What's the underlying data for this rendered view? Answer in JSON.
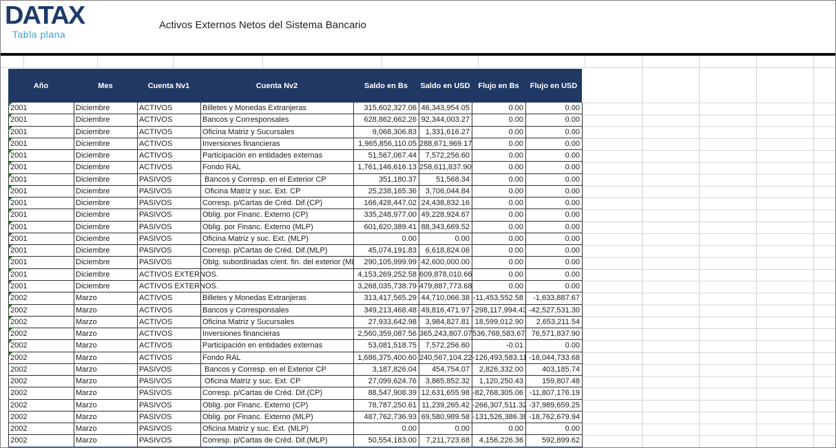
{
  "branding": {
    "logo": "DATAX",
    "tagline": "Tabla plana"
  },
  "title": "Activos Externos Netos del Sistema Bancario",
  "colors": {
    "header_bg": "#1f3864",
    "logo_navy": "#1c3a6b",
    "tagline_blue": "#3aa0dc",
    "error_marker_green": "#1e8a1e",
    "grid_gray": "#d4d4d4"
  },
  "table": {
    "columns": [
      {
        "key": "ano",
        "label": "Año"
      },
      {
        "key": "mes",
        "label": "Mes"
      },
      {
        "key": "c1",
        "label": "Cuenta Nv1"
      },
      {
        "key": "c2",
        "label": "Cuenta Nv2"
      },
      {
        "key": "saldo_bs",
        "label": "Saldo en Bs"
      },
      {
        "key": "saldo_usd",
        "label": "Saldo en USD"
      },
      {
        "key": "flujo_bs",
        "label": "Flujo en Bs"
      },
      {
        "key": "flujo_usd",
        "label": "Flujo en USD"
      }
    ],
    "rows": [
      {
        "ano": "2001",
        "mes": "Diciembre",
        "c1": "ACTIVOS",
        "c2": "Billetes y Monedas Extranjeras",
        "saldo_bs": "315,602,327.06",
        "saldo_usd": "46,343,954.05",
        "flujo_bs": "0.00",
        "flujo_usd": "0.00",
        "marker": true
      },
      {
        "ano": "2001",
        "mes": "Diciembre",
        "c1": "ACTIVOS",
        "c2": "Bancos y Corresponsales",
        "saldo_bs": "628,862,662.26",
        "saldo_usd": "92,344,003.27",
        "flujo_bs": "0.00",
        "flujo_usd": "0.00",
        "marker": true
      },
      {
        "ano": "2001",
        "mes": "Diciembre",
        "c1": "ACTIVOS",
        "c2": "Oficina Matriz y Sucursales",
        "saldo_bs": "9,068,306.83",
        "saldo_usd": "1,331,616.27",
        "flujo_bs": "0.00",
        "flujo_usd": "0.00",
        "marker": true
      },
      {
        "ano": "2001",
        "mes": "Diciembre",
        "c1": "ACTIVOS",
        "c2": "Inversiones financieras",
        "saldo_bs": "1,965,856,110.05",
        "saldo_usd": "288,671,969.17",
        "flujo_bs": "0.00",
        "flujo_usd": "0.00",
        "marker": true
      },
      {
        "ano": "2001",
        "mes": "Diciembre",
        "c1": "ACTIVOS",
        "c2": "Participación en entidades externas",
        "saldo_bs": "51,567,067.44",
        "saldo_usd": "7,572,256.60",
        "flujo_bs": "0.00",
        "flujo_usd": "0.00",
        "marker": true
      },
      {
        "ano": "2001",
        "mes": "Diciembre",
        "c1": "ACTIVOS",
        "c2": "Fondo RAL",
        "saldo_bs": "1,761,146,616.13",
        "saldo_usd": "258,611,837.90",
        "flujo_bs": "0.00",
        "flujo_usd": "0.00",
        "marker": true
      },
      {
        "ano": "2001",
        "mes": "Diciembre",
        "c1": "PASIVOS",
        "c2": " Bancos y Corresp. en el Exterior CP",
        "saldo_bs": "351,180.37",
        "saldo_usd": "51,568.34",
        "flujo_bs": "0.00",
        "flujo_usd": "0.00",
        "marker": true
      },
      {
        "ano": "2001",
        "mes": "Diciembre",
        "c1": "PASIVOS",
        "c2": " Oficina Matriz y suc. Ext. CP",
        "saldo_bs": "25,238,165.36",
        "saldo_usd": "3,706,044.84",
        "flujo_bs": "0.00",
        "flujo_usd": "0.00",
        "marker": true
      },
      {
        "ano": "2001",
        "mes": "Diciembre",
        "c1": "PASIVOS",
        "c2": "Corresp. p/Cartas de Créd. Dif.(CP)",
        "saldo_bs": "166,428,447.02",
        "saldo_usd": "24,438,832.16",
        "flujo_bs": "0.00",
        "flujo_usd": "0.00",
        "marker": true
      },
      {
        "ano": "2001",
        "mes": "Diciembre",
        "c1": "PASIVOS",
        "c2": "Oblig. por Financ. Externo (CP)",
        "saldo_bs": "335,248,977.00",
        "saldo_usd": "49,228,924.67",
        "flujo_bs": "0.00",
        "flujo_usd": "0.00",
        "marker": true
      },
      {
        "ano": "2001",
        "mes": "Diciembre",
        "c1": "PASIVOS",
        "c2": "Oblig. por Financ. Externo (MLP)",
        "saldo_bs": "601,620,389.41",
        "saldo_usd": "88,343,669.52",
        "flujo_bs": "0.00",
        "flujo_usd": "0.00",
        "marker": true
      },
      {
        "ano": "2001",
        "mes": "Diciembre",
        "c1": "PASIVOS",
        "c2": "Oficina Matriz y suc. Ext. (MLP)",
        "saldo_bs": "0.00",
        "saldo_usd": "0.00",
        "flujo_bs": "0.00",
        "flujo_usd": "0.00",
        "marker": true
      },
      {
        "ano": "2001",
        "mes": "Diciembre",
        "c1": "PASIVOS",
        "c2": "Corresp. p/Cartas de Créd. Dif.(MLP)",
        "saldo_bs": "45,074,191.83",
        "saldo_usd": "6,618,824.06",
        "flujo_bs": "0.00",
        "flujo_usd": "0.00",
        "marker": true
      },
      {
        "ano": "2001",
        "mes": "Diciembre",
        "c1": "PASIVOS",
        "c2": "Oblg. subordinadas c/ent. fin. del exterior (MLP)",
        "saldo_bs": "290,105,999.99",
        "saldo_usd": "42,600,000.00",
        "flujo_bs": "0.00",
        "flujo_usd": "0.00",
        "marker": true
      },
      {
        "ano": "2001",
        "mes": "Diciembre",
        "c1": "ACTIVOS EXTERNOS.",
        "c2": "",
        "saldo_bs": "4,153,269,252.58",
        "saldo_usd": "609,878,010.66",
        "flujo_bs": "0.00",
        "flujo_usd": "0.00",
        "marker": true
      },
      {
        "ano": "2001",
        "mes": "Diciembre",
        "c1": "ACTIVOS EXTERNOS.",
        "c2": "",
        "saldo_bs": "3,268,035,738.79",
        "saldo_usd": "479,887,773.68",
        "flujo_bs": "0.00",
        "flujo_usd": "0.00",
        "marker": true
      },
      {
        "ano": "2002",
        "mes": "Marzo",
        "c1": "ACTIVOS",
        "c2": "Billetes y Monedas Extranjeras",
        "saldo_bs": "313,417,565.29",
        "saldo_usd": "44,710,066.38",
        "flujo_bs": "-11,453,552.58",
        "flujo_usd": "-1,633,887.67",
        "marker": true
      },
      {
        "ano": "2002",
        "mes": "Marzo",
        "c1": "ACTIVOS",
        "c2": "Bancos y Corresponsales",
        "saldo_bs": "349,213,468.48",
        "saldo_usd": "49,816,471.97",
        "flujo_bs": "-298,117,994.43",
        "flujo_usd": "-42,527,531.30",
        "marker": true
      },
      {
        "ano": "2002",
        "mes": "Marzo",
        "c1": "ACTIVOS",
        "c2": "Oficina Matriz y Sucursales",
        "saldo_bs": "27,933,642.98",
        "saldo_usd": "3,984,827.81",
        "flujo_bs": "18,599,012.90",
        "flujo_usd": "2,653,211.54",
        "marker": true
      },
      {
        "ano": "2002",
        "mes": "Marzo",
        "c1": "ACTIVOS",
        "c2": "Inversiones financieras",
        "saldo_bs": "2,560,359,087.56",
        "saldo_usd": "365,243,807.07",
        "flujo_bs": "536,768,583.67",
        "flujo_usd": "76,571,837.90",
        "marker": true
      },
      {
        "ano": "2002",
        "mes": "Marzo",
        "c1": "ACTIVOS",
        "c2": "Participación en entidades externas",
        "saldo_bs": "53,081,518.75",
        "saldo_usd": "7,572,256.60",
        "flujo_bs": "-0.01",
        "flujo_usd": "0.00",
        "marker": true
      },
      {
        "ano": "2002",
        "mes": "Marzo",
        "c1": "ACTIVOS",
        "c2": "Fondo RAL",
        "saldo_bs": "1,686,375,400.60",
        "saldo_usd": "240,567,104.22",
        "flujo_bs": "-126,493,583.11",
        "flujo_usd": "-18,044,733.68",
        "marker": true
      },
      {
        "ano": "2002",
        "mes": "Marzo",
        "c1": "PASIVOS",
        "c2": " Bancos y Corresp. en el Exterior CP",
        "saldo_bs": "3,187,826.04",
        "saldo_usd": "454,754.07",
        "flujo_bs": "2,826,332.00",
        "flujo_usd": "403,185.74",
        "marker": false
      },
      {
        "ano": "2002",
        "mes": "Marzo",
        "c1": "PASIVOS",
        "c2": " Oficina Matriz y suc. Ext. CP",
        "saldo_bs": "27,099,624.76",
        "saldo_usd": "3,865,852.32",
        "flujo_bs": "1,120,250.43",
        "flujo_usd": "159,807.48",
        "marker": false
      },
      {
        "ano": "2002",
        "mes": "Marzo",
        "c1": "PASIVOS",
        "c2": "Corresp. p/Cartas de Créd. Dif.(CP)",
        "saldo_bs": "88,547,908.39",
        "saldo_usd": "12,631,655.98",
        "flujo_bs": "-82,768,305.06",
        "flujo_usd": "-11,807,176.19",
        "marker": false
      },
      {
        "ano": "2002",
        "mes": "Marzo",
        "c1": "PASIVOS",
        "c2": "Oblig. por Financ. Externo (CP)",
        "saldo_bs": "78,787,250.61",
        "saldo_usd": "11,239,265.42",
        "flujo_bs": "-266,307,511.32",
        "flujo_usd": "-37,989,659.25",
        "marker": false
      },
      {
        "ano": "2002",
        "mes": "Marzo",
        "c1": "PASIVOS",
        "c2": "Oblig. por Financ. Externo (MLP)",
        "saldo_bs": "487,762,736.93",
        "saldo_usd": "69,580,989.58",
        "flujo_bs": "-131,526,386.38",
        "flujo_usd": "-18,762,679.94",
        "marker": false
      },
      {
        "ano": "2002",
        "mes": "Marzo",
        "c1": "PASIVOS",
        "c2": "Oficina Matriz y suc. Ext. (MLP)",
        "saldo_bs": "0.00",
        "saldo_usd": "0.00",
        "flujo_bs": "0.00",
        "flujo_usd": "0.00",
        "marker": false
      },
      {
        "ano": "2002",
        "mes": "Marzo",
        "c1": "PASIVOS",
        "c2": "Corresp. p/Cartas de Créd. Dif.(MLP)",
        "saldo_bs": "50,554,183.00",
        "saldo_usd": "7,211,723.68",
        "flujo_bs": "4,156,226.36",
        "flujo_usd": "592,899.62",
        "marker": false
      }
    ]
  }
}
